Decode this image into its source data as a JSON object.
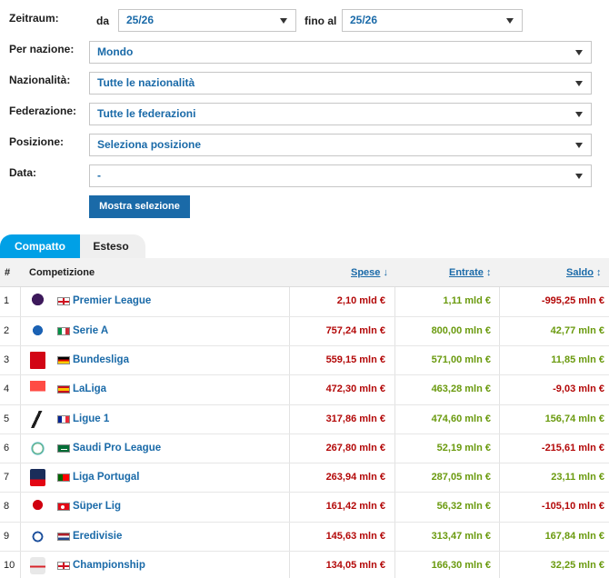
{
  "filters": {
    "zeitraum_label": "Zeitraum:",
    "da_label": "da",
    "da_value": "25/26",
    "fino_al_label": "fino al",
    "fino_al_value": "25/26",
    "per_nazione_label": "Per nazione:",
    "per_nazione_value": "Mondo",
    "nazionalita_label": "Nazionalità:",
    "nazionalita_value": "Tutte le nazionalità",
    "federazione_label": "Federazione:",
    "federazione_value": "Tutte le federazioni",
    "posizione_label": "Posizione:",
    "posizione_value": "Seleziona posizione",
    "data_label": "Data:",
    "data_value": "-",
    "show_button": "Mostra selezione"
  },
  "tabs": [
    {
      "label": "Compatto",
      "active": true
    },
    {
      "label": "Esteso",
      "active": false
    }
  ],
  "table": {
    "headers": {
      "rank": "#",
      "competition": "Competizione",
      "spese": "Spese",
      "spese_sort_icon": "↓",
      "entrate": "Entrate",
      "entrate_sort_icon": "↕",
      "saldo": "Saldo",
      "saldo_sort_icon": "↕"
    },
    "rows": [
      {
        "rank": "1",
        "logo": "premier-league-logo",
        "flag": "england-flag",
        "name": "Premier League",
        "spese": "2,10 mld €",
        "entrate": "1,11 mld €",
        "saldo": "-995,25 mln €",
        "saldo_sign": "neg"
      },
      {
        "rank": "2",
        "logo": "serie-a-logo",
        "flag": "italy-flag",
        "name": "Serie A",
        "spese": "757,24 mln €",
        "entrate": "800,00 mln €",
        "saldo": "42,77 mln €",
        "saldo_sign": "pos"
      },
      {
        "rank": "3",
        "logo": "bundesliga-logo",
        "flag": "germany-flag",
        "name": "Bundesliga",
        "spese": "559,15 mln €",
        "entrate": "571,00 mln €",
        "saldo": "11,85 mln €",
        "saldo_sign": "pos"
      },
      {
        "rank": "4",
        "logo": "laliga-logo",
        "flag": "spain-flag",
        "name": "LaLiga",
        "spese": "472,30 mln €",
        "entrate": "463,28 mln €",
        "saldo": "-9,03 mln €",
        "saldo_sign": "neg"
      },
      {
        "rank": "5",
        "logo": "ligue-1-logo",
        "flag": "france-flag",
        "name": "Ligue 1",
        "spese": "317,86 mln €",
        "entrate": "474,60 mln €",
        "saldo": "156,74 mln €",
        "saldo_sign": "pos"
      },
      {
        "rank": "6",
        "logo": "saudi-pro-league-logo",
        "flag": "saudi-arabia-flag",
        "name": "Saudi Pro League",
        "spese": "267,80 mln €",
        "entrate": "52,19 mln €",
        "saldo": "-215,61 mln €",
        "saldo_sign": "neg"
      },
      {
        "rank": "7",
        "logo": "liga-portugal-logo",
        "flag": "portugal-flag",
        "name": "Liga Portugal",
        "spese": "263,94 mln €",
        "entrate": "287,05 mln €",
        "saldo": "23,11 mln €",
        "saldo_sign": "pos"
      },
      {
        "rank": "8",
        "logo": "super-lig-logo",
        "flag": "turkey-flag",
        "name": "Süper Lig",
        "spese": "161,42 mln €",
        "entrate": "56,32 mln €",
        "saldo": "-105,10 mln €",
        "saldo_sign": "neg"
      },
      {
        "rank": "9",
        "logo": "eredivisie-logo",
        "flag": "netherlands-flag",
        "name": "Eredivisie",
        "spese": "145,63 mln €",
        "entrate": "313,47 mln €",
        "saldo": "167,84 mln €",
        "saldo_sign": "pos"
      },
      {
        "rank": "10",
        "logo": "championship-logo",
        "flag": "england-flag",
        "name": "Championship",
        "spese": "134,05 mln €",
        "entrate": "166,30 mln €",
        "saldo": "32,25 mln €",
        "saldo_sign": "pos"
      }
    ]
  },
  "colors": {
    "link": "#1a6aa8",
    "tab_active": "#00a0e6",
    "negative": "#b30808",
    "positive": "#6a9a0e"
  }
}
